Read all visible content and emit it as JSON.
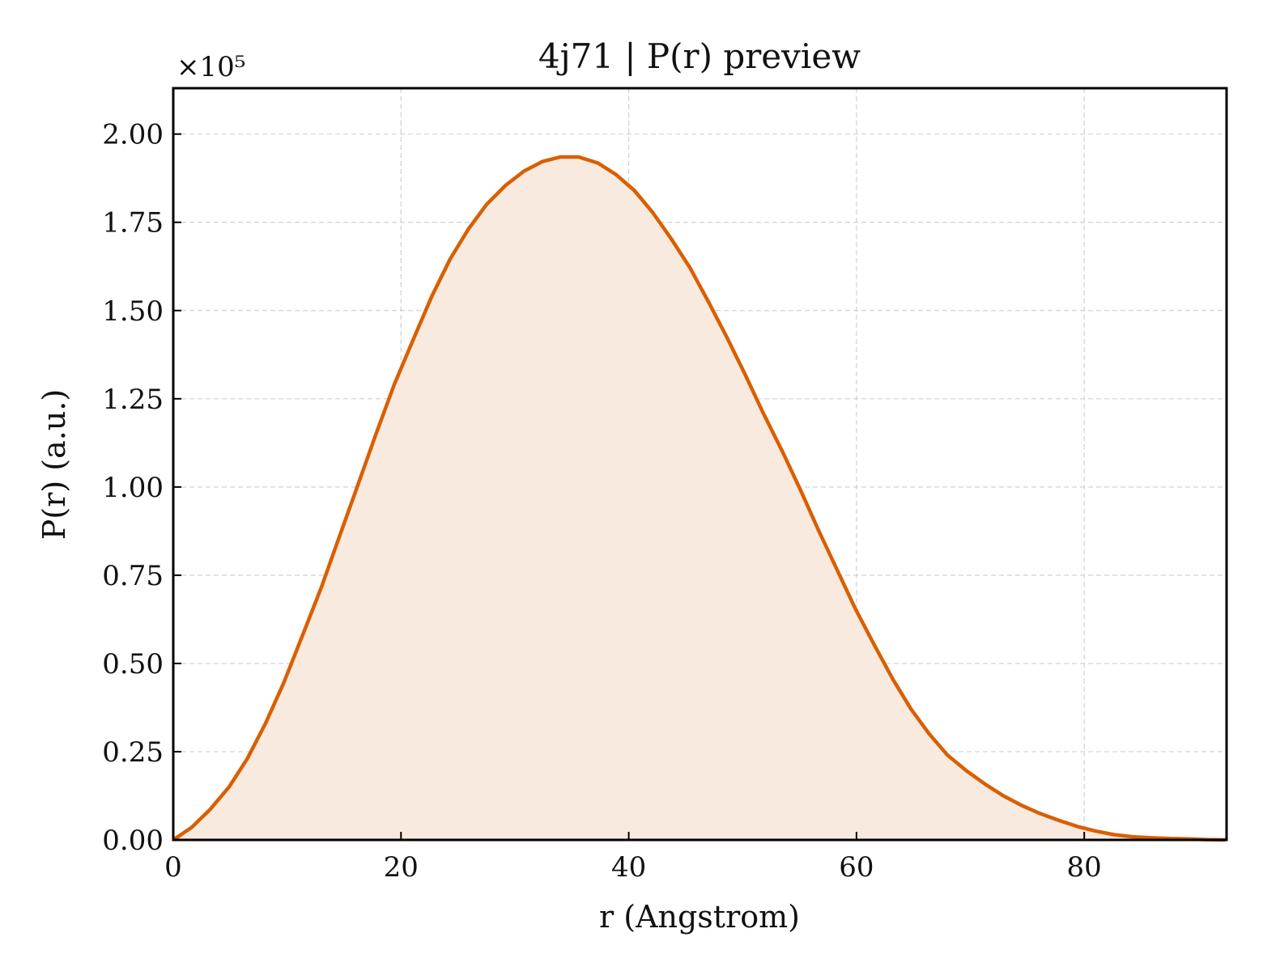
{
  "chart_data": {
    "type": "area",
    "title": "4j71 | P(r) preview",
    "xlabel": "r (Angstrom)",
    "ylabel": "P(r) (a.u.)",
    "y_scale_note": "×10⁵",
    "xlim": [
      0,
      92.5
    ],
    "ylim": [
      0,
      2.13
    ],
    "x_ticks": [
      0,
      20,
      40,
      60,
      80
    ],
    "x_tick_labels": [
      "0",
      "20",
      "40",
      "60",
      "80"
    ],
    "y_ticks": [
      0,
      0.25,
      0.5,
      0.75,
      1.0,
      1.25,
      1.5,
      1.75,
      2.0
    ],
    "y_tick_labels": [
      "0.00",
      "0.25",
      "0.50",
      "0.75",
      "1.00",
      "1.25",
      "1.50",
      "1.75",
      "2.00"
    ],
    "grid": true,
    "line_color": "#d95f02",
    "fill_color": "#f9eadf",
    "series": [
      {
        "x": [
          0,
          1.6,
          3.2,
          4.9,
          6.5,
          8.1,
          9.7,
          11.3,
          13.0,
          14.6,
          16.2,
          17.8,
          19.4,
          21.1,
          22.7,
          24.3,
          25.9,
          27.5,
          29.2,
          30.8,
          32.4,
          34.0,
          35.6,
          37.3,
          38.9,
          40.5,
          42.1,
          43.7,
          45.4,
          47.0,
          48.6,
          50.2,
          51.8,
          53.5,
          55.1,
          56.7,
          58.3,
          59.9,
          61.6,
          63.2,
          64.8,
          66.4,
          68.0,
          69.7,
          71.3,
          72.9,
          74.5,
          76.1,
          77.8,
          79.4,
          81.0,
          82.6,
          84.2,
          85.9,
          87.5,
          89.1,
          90.7,
          92.4
        ],
        "y": [
          0.0,
          0.035,
          0.085,
          0.15,
          0.23,
          0.33,
          0.445,
          0.575,
          0.715,
          0.86,
          1.005,
          1.15,
          1.29,
          1.42,
          1.54,
          1.645,
          1.73,
          1.8,
          1.855,
          1.895,
          1.922,
          1.935,
          1.935,
          1.918,
          1.885,
          1.84,
          1.778,
          1.705,
          1.62,
          1.525,
          1.425,
          1.32,
          1.21,
          1.1,
          0.99,
          0.875,
          0.765,
          0.655,
          0.55,
          0.455,
          0.37,
          0.3,
          0.24,
          0.195,
          0.158,
          0.125,
          0.098,
          0.075,
          0.055,
          0.038,
          0.025,
          0.015,
          0.009,
          0.006,
          0.004,
          0.003,
          0.001,
          0.0
        ]
      }
    ]
  }
}
